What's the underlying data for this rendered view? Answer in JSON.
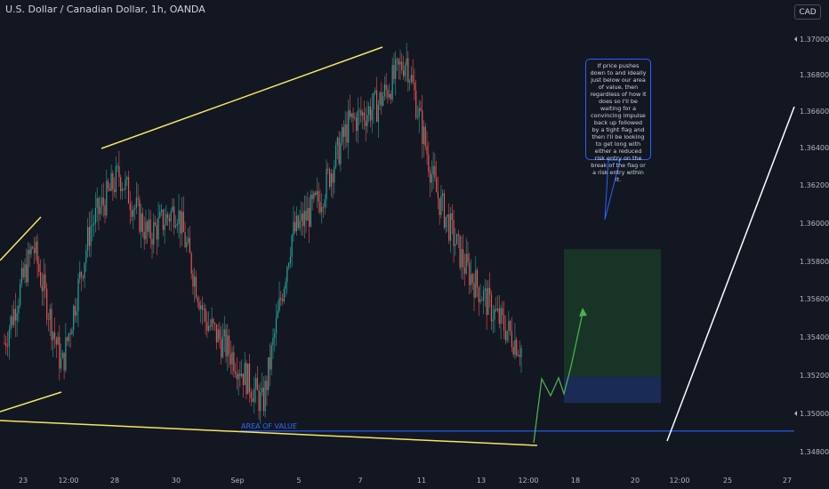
{
  "header": {
    "title": "U.S. Dollar / Canadian Dollar, 1h, OANDA",
    "currency_button": "CAD"
  },
  "annotations": {
    "callout_text": "If price pushes down to and ideally just below our area of value, then regardless of how it does so I'll be waiting for a convincing impulse back up followed by a tight flag and then I'll be looking to get long with either a reduced risk entry on the break of the flag or a risk entry within it.",
    "area_of_value_label": "AREA OF VALUE"
  },
  "colors": {
    "background": "#131722",
    "bull_candle": "#26a69a",
    "bear_candle": "#ef5350",
    "trendline": "#f5e663",
    "area_of_value_line": "#2962ff",
    "projection_arrow": "#4caf50",
    "target_zone": "#1b4d2a",
    "stop_zone": "#1c2f5e",
    "arrow_line": "#ffffff"
  },
  "chart_data": {
    "type": "candlestick",
    "symbol": "USDCAD",
    "timeframe": "1h",
    "y_axis": {
      "ticks": [
        "1.37000",
        "1.36800",
        "1.36600",
        "1.36400",
        "1.36200",
        "1.36000",
        "1.35800",
        "1.35600",
        "1.35400",
        "1.35200",
        "1.35000",
        "1.34800"
      ],
      "range": [
        1.3475,
        1.3715
      ]
    },
    "x_axis": {
      "ticks": [
        "23",
        "12:00",
        "28",
        "30",
        "Sep",
        "5",
        "7",
        "11",
        "13",
        "12:00",
        "18",
        "20",
        "12:00",
        "25",
        "27"
      ]
    },
    "price_path": [
      {
        "date": "Aug 22",
        "price": 1.3538
      },
      {
        "date": "Aug 23",
        "price": 1.359
      },
      {
        "date": "Aug 24",
        "price": 1.3525
      },
      {
        "date": "Aug 25",
        "price": 1.36
      },
      {
        "date": "Aug 27",
        "price": 1.3628
      },
      {
        "date": "Aug 28",
        "price": 1.3595
      },
      {
        "date": "Aug 29",
        "price": 1.361
      },
      {
        "date": "Aug 30",
        "price": 1.355
      },
      {
        "date": "Aug 31",
        "price": 1.353
      },
      {
        "date": "Sep 1",
        "price": 1.3505
      },
      {
        "date": "Sep 4",
        "price": 1.3595
      },
      {
        "date": "Sep 5",
        "price": 1.3615
      },
      {
        "date": "Sep 6",
        "price": 1.3655
      },
      {
        "date": "Sep 7",
        "price": 1.3665
      },
      {
        "date": "Sep 8",
        "price": 1.369
      },
      {
        "date": "Sep 11",
        "price": 1.362
      },
      {
        "date": "Sep 12",
        "price": 1.358
      },
      {
        "date": "Sep 13",
        "price": 1.3555
      },
      {
        "date": "Sep 14",
        "price": 1.3535
      }
    ],
    "levels": {
      "area_of_value": 1.3491,
      "target_zone": [
        1.352,
        1.3588
      ],
      "stop_zone": [
        1.3506,
        1.352
      ]
    },
    "title": "U.S. Dollar / Canadian Dollar, 1h, OANDA"
  }
}
